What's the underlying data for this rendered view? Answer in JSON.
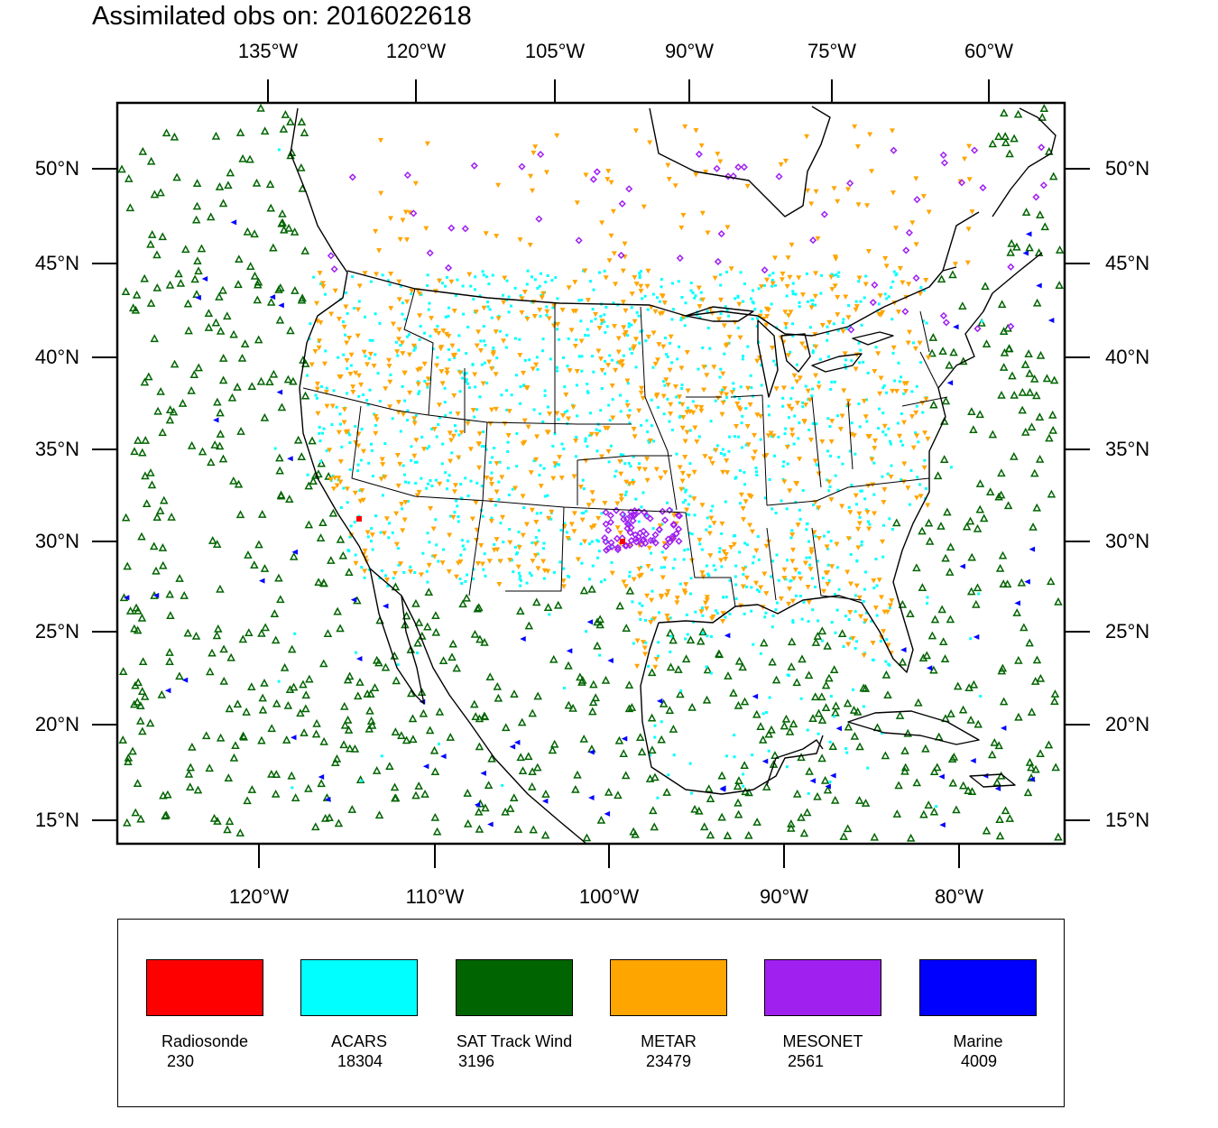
{
  "title": "Assimilated obs on: 2016022618",
  "axes": {
    "top_lon_labels": [
      "135°W",
      "120°W",
      "105°W",
      "90°W",
      "75°W",
      "60°W"
    ],
    "bottom_lon_labels": [
      "120°W",
      "110°W",
      "100°W",
      "90°W",
      "80°W"
    ],
    "lat_labels": [
      "50°N",
      "45°N",
      "40°N",
      "35°N",
      "30°N",
      "25°N",
      "20°N",
      "15°N"
    ]
  },
  "legend": [
    {
      "name": "Radiosonde",
      "count": "230",
      "color": "#ff0000"
    },
    {
      "name": "ACARS",
      "count": "18304",
      "color": "#00ffff"
    },
    {
      "name": "SAT Track Wind",
      "count": "3196",
      "color": "#006400"
    },
    {
      "name": "METAR",
      "count": "23479",
      "color": "#ffa500"
    },
    {
      "name": "MESONET",
      "count": "2561",
      "color": "#a020f0"
    },
    {
      "name": "Marine",
      "count": "4009",
      "color": "#0000ff"
    }
  ],
  "colors": {
    "acars": "#00ffff",
    "sat_track_wind": "#006400",
    "metar": "#ffa500",
    "mesonet": "#a020f0",
    "marine": "#0000ff",
    "radiosonde": "#ff0000"
  }
}
